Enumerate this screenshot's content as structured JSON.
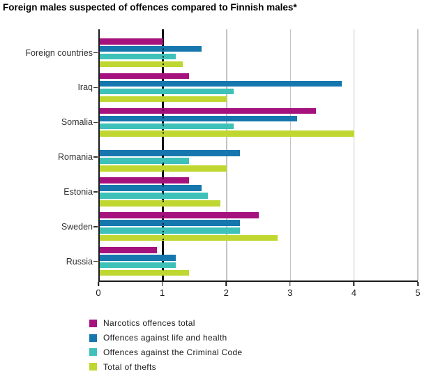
{
  "title": "Foreign males suspected of offences compared to Finnish males*",
  "chart_data": {
    "type": "bar",
    "orientation": "horizontal",
    "title": "Foreign males suspected of offences compared to Finnish males*",
    "categories": [
      "Foreign countries",
      "Iraq",
      "Somalia",
      "Romania",
      "Estonia",
      "Sweden",
      "Russia"
    ],
    "series": [
      {
        "name": "Narcotics offences total",
        "color": "#A5127E",
        "values": [
          1.0,
          1.4,
          3.4,
          0,
          1.4,
          2.5,
          0.9
        ]
      },
      {
        "name": "Offences against life and health",
        "color": "#1677AE",
        "values": [
          1.6,
          3.8,
          3.1,
          2.2,
          1.6,
          2.2,
          1.2
        ]
      },
      {
        "name": "Offences against the Criminal Code",
        "color": "#3EC1B8",
        "values": [
          1.2,
          2.1,
          2.1,
          1.4,
          1.7,
          2.2,
          1.2
        ]
      },
      {
        "name": "Total of thefts",
        "color": "#BFD730",
        "values": [
          1.3,
          2.0,
          4.0,
          2.0,
          1.9,
          2.8,
          1.4
        ]
      }
    ],
    "xlim": [
      0,
      5
    ],
    "x_ticks": [
      "0",
      "1",
      "2",
      "3",
      "4",
      "5"
    ],
    "reference_line_x": 1,
    "grid": true,
    "gridline_color": "#c4c4c4",
    "legend_position": "bottom",
    "xlabel": "",
    "ylabel": ""
  }
}
